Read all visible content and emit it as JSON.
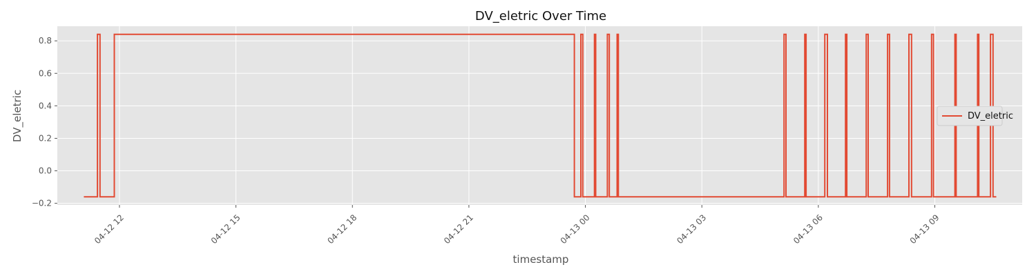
{
  "chart_data": {
    "type": "line",
    "title": "DV_eletric Over Time",
    "xlabel": "timestamp",
    "ylabel": "DV_eletric",
    "x_axis_type": "time",
    "xlim": [
      "2025-04-12 10:24",
      "2025-04-13 11:15"
    ],
    "ylim": [
      -0.21,
      0.89
    ],
    "y_ticks": [
      {
        "value": -0.2,
        "label": "−0.2"
      },
      {
        "value": 0.0,
        "label": "0.0"
      },
      {
        "value": 0.2,
        "label": "0.2"
      },
      {
        "value": 0.4,
        "label": "0.4"
      },
      {
        "value": 0.6,
        "label": "0.6"
      },
      {
        "value": 0.8,
        "label": "0.8"
      }
    ],
    "x_ticks": [
      {
        "value": "2025-04-12 12:00",
        "label": "04-12 12"
      },
      {
        "value": "2025-04-12 15:00",
        "label": "04-12 15"
      },
      {
        "value": "2025-04-12 18:00",
        "label": "04-12 18"
      },
      {
        "value": "2025-04-12 21:00",
        "label": "04-12 21"
      },
      {
        "value": "2025-04-13 00:00",
        "label": "04-13 00"
      },
      {
        "value": "2025-04-13 03:00",
        "label": "04-13 03"
      },
      {
        "value": "2025-04-13 06:00",
        "label": "04-13 06"
      },
      {
        "value": "2025-04-13 09:00",
        "label": "04-13 09"
      }
    ],
    "grid": true,
    "legend_position": "center-right",
    "series": [
      {
        "name": "DV_eletric",
        "color": "#e24a33",
        "step": true,
        "low": -0.16,
        "high": 0.84,
        "start": "2025-04-12 11:05",
        "end": "2025-04-13 10:35",
        "high_intervals": [
          [
            "2025-04-12 11:26",
            "2025-04-12 11:30"
          ],
          [
            "2025-04-12 11:52",
            "2025-04-12 23:43"
          ],
          [
            "2025-04-12 23:53",
            "2025-04-12 23:56"
          ],
          [
            "2025-04-13 00:14",
            "2025-04-13 00:16"
          ],
          [
            "2025-04-13 00:34",
            "2025-04-13 00:37"
          ],
          [
            "2025-04-13 00:49",
            "2025-04-13 00:51"
          ],
          [
            "2025-04-13 05:07",
            "2025-04-13 05:10"
          ],
          [
            "2025-04-13 05:39",
            "2025-04-13 05:41"
          ],
          [
            "2025-04-13 06:10",
            "2025-04-13 06:14"
          ],
          [
            "2025-04-13 06:42",
            "2025-04-13 06:44"
          ],
          [
            "2025-04-13 07:14",
            "2025-04-13 07:17"
          ],
          [
            "2025-04-13 07:47",
            "2025-04-13 07:50"
          ],
          [
            "2025-04-13 08:20",
            "2025-04-13 08:24"
          ],
          [
            "2025-04-13 08:55",
            "2025-04-13 08:58"
          ],
          [
            "2025-04-13 09:31",
            "2025-04-13 09:33"
          ],
          [
            "2025-04-13 10:06",
            "2025-04-13 10:08"
          ],
          [
            "2025-04-13 10:26",
            "2025-04-13 10:30"
          ]
        ]
      }
    ]
  },
  "colors": {
    "plot_background": "#e5e5e5",
    "grid": "#ffffff",
    "text": "#555555"
  }
}
